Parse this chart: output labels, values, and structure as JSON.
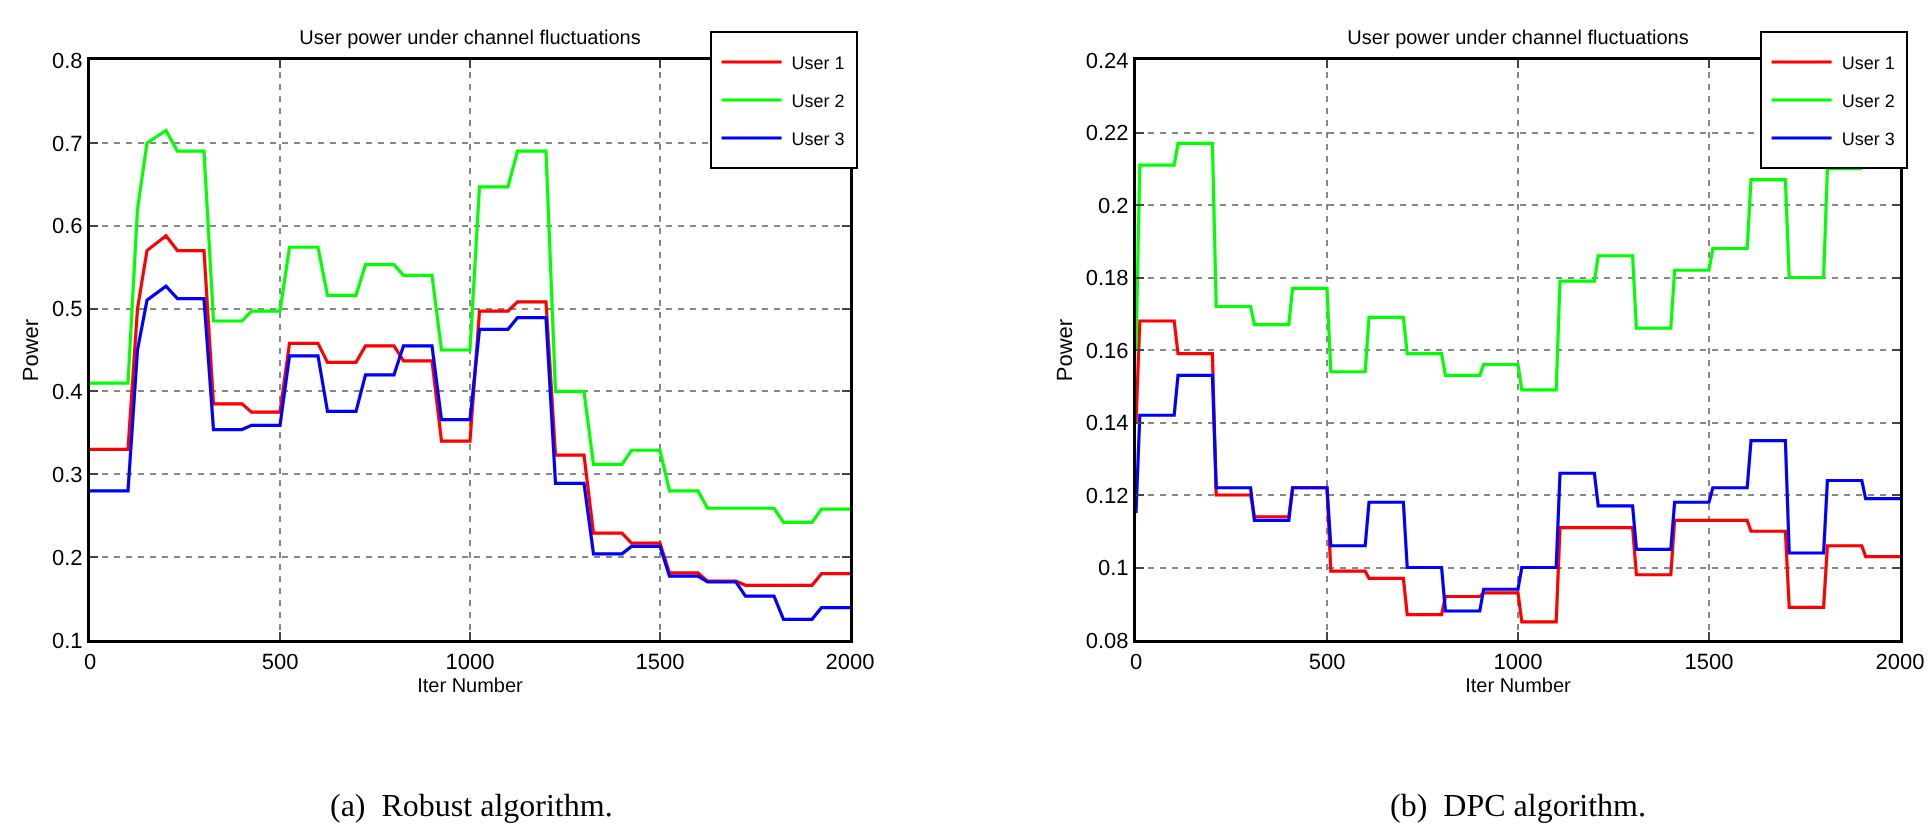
{
  "chart_data": [
    {
      "type": "line",
      "title": "User power under channel fluctuations",
      "xlabel": "Iter Number",
      "ylabel": "Power",
      "xlim": [
        0,
        2000
      ],
      "ylim": [
        0.1,
        0.8
      ],
      "xticks": [
        0,
        500,
        1000,
        1500,
        2000
      ],
      "yticks": [
        0.1,
        0.2,
        0.3,
        0.4,
        0.5,
        0.6,
        0.7,
        0.8
      ],
      "grid": true,
      "legend": "top right",
      "line_style": "solid",
      "annotations": [
        "(a)  Robust algorithm."
      ],
      "x": [
        0,
        100,
        125,
        150,
        200,
        230,
        300,
        325,
        400,
        425,
        500,
        525,
        600,
        625,
        700,
        725,
        800,
        825,
        900,
        925,
        1000,
        1025,
        1100,
        1125,
        1200,
        1225,
        1300,
        1325,
        1400,
        1425,
        1500,
        1525,
        1600,
        1625,
        1700,
        1725,
        1800,
        1825,
        1900,
        1925,
        2000
      ],
      "series": [
        {
          "name": "User 1",
          "color": "#ff0000",
          "values": [
            0.33,
            0.33,
            0.5,
            0.57,
            0.588,
            0.57,
            0.57,
            0.385,
            0.385,
            0.375,
            0.375,
            0.458,
            0.458,
            0.435,
            0.435,
            0.455,
            0.455,
            0.437,
            0.437,
            0.34,
            0.34,
            0.497,
            0.497,
            0.508,
            0.508,
            0.323,
            0.323,
            0.229,
            0.229,
            0.217,
            0.217,
            0.181,
            0.181,
            0.171,
            0.171,
            0.166,
            0.166,
            0.166,
            0.166,
            0.18,
            0.18
          ]
        },
        {
          "name": "User 2",
          "color": "#00ff00",
          "values": [
            0.41,
            0.41,
            0.62,
            0.7,
            0.715,
            0.69,
            0.69,
            0.485,
            0.485,
            0.497,
            0.497,
            0.574,
            0.574,
            0.516,
            0.516,
            0.553,
            0.553,
            0.54,
            0.54,
            0.45,
            0.45,
            0.647,
            0.647,
            0.69,
            0.69,
            0.4,
            0.4,
            0.312,
            0.312,
            0.329,
            0.329,
            0.28,
            0.28,
            0.259,
            0.259,
            0.259,
            0.259,
            0.242,
            0.242,
            0.258,
            0.258
          ]
        },
        {
          "name": "User 3",
          "color": "#0000ff",
          "values": [
            0.28,
            0.28,
            0.45,
            0.51,
            0.527,
            0.512,
            0.512,
            0.354,
            0.354,
            0.359,
            0.359,
            0.443,
            0.443,
            0.376,
            0.376,
            0.42,
            0.42,
            0.455,
            0.455,
            0.366,
            0.366,
            0.475,
            0.475,
            0.489,
            0.489,
            0.289,
            0.289,
            0.204,
            0.204,
            0.213,
            0.213,
            0.177,
            0.177,
            0.17,
            0.17,
            0.153,
            0.153,
            0.125,
            0.125,
            0.139,
            0.139
          ]
        }
      ]
    },
    {
      "type": "line",
      "title": "User power under channel fluctuations",
      "xlabel": "Iter Number",
      "ylabel": "Power",
      "xlim": [
        0,
        2000
      ],
      "ylim": [
        0.08,
        0.24
      ],
      "xticks": [
        0,
        500,
        1000,
        1500,
        2000
      ],
      "yticks": [
        0.08,
        0.1,
        0.12,
        0.14,
        0.16,
        0.18,
        0.2,
        0.22,
        0.24
      ],
      "grid": true,
      "legend": "top right",
      "line_style": "solid",
      "annotations": [
        "(b)  DPC algorithm."
      ],
      "x": [
        0,
        10,
        100,
        110,
        200,
        210,
        300,
        310,
        400,
        410,
        500,
        510,
        600,
        610,
        700,
        710,
        800,
        810,
        900,
        910,
        1000,
        1010,
        1100,
        1110,
        1200,
        1210,
        1300,
        1310,
        1400,
        1410,
        1500,
        1510,
        1600,
        1610,
        1700,
        1710,
        1800,
        1810,
        1900,
        1910,
        2000
      ],
      "series": [
        {
          "name": "User 1",
          "color": "#ff0000",
          "values": [
            0.14,
            0.168,
            0.168,
            0.159,
            0.159,
            0.12,
            0.12,
            0.114,
            0.114,
            0.122,
            0.122,
            0.099,
            0.099,
            0.097,
            0.097,
            0.087,
            0.087,
            0.092,
            0.092,
            0.093,
            0.093,
            0.085,
            0.085,
            0.111,
            0.111,
            0.111,
            0.111,
            0.098,
            0.098,
            0.113,
            0.113,
            0.113,
            0.113,
            0.11,
            0.11,
            0.089,
            0.089,
            0.106,
            0.106,
            0.103,
            0.103
          ]
        },
        {
          "name": "User 2",
          "color": "#00ff00",
          "values": [
            0.16,
            0.211,
            0.211,
            0.217,
            0.217,
            0.172,
            0.172,
            0.167,
            0.167,
            0.177,
            0.177,
            0.154,
            0.154,
            0.169,
            0.169,
            0.159,
            0.159,
            0.153,
            0.153,
            0.156,
            0.156,
            0.149,
            0.149,
            0.179,
            0.179,
            0.186,
            0.186,
            0.166,
            0.166,
            0.182,
            0.182,
            0.188,
            0.188,
            0.207,
            0.207,
            0.18,
            0.18,
            0.21,
            0.21,
            null,
            null
          ]
        },
        {
          "name": "User 3",
          "color": "#0000ff",
          "values": [
            0.115,
            0.142,
            0.142,
            0.153,
            0.153,
            0.122,
            0.122,
            0.113,
            0.113,
            0.122,
            0.122,
            0.106,
            0.106,
            0.118,
            0.118,
            0.1,
            0.1,
            0.088,
            0.088,
            0.094,
            0.094,
            0.1,
            0.1,
            0.126,
            0.126,
            0.117,
            0.117,
            0.105,
            0.105,
            0.118,
            0.118,
            0.122,
            0.122,
            0.135,
            0.135,
            0.104,
            0.104,
            0.124,
            0.124,
            0.119,
            0.119
          ]
        }
      ]
    }
  ]
}
